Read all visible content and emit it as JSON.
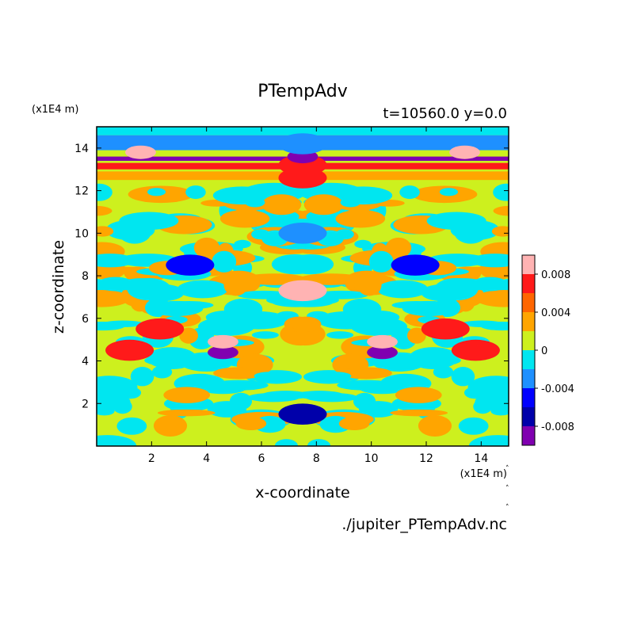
{
  "chart_data": {
    "type": "heatmap",
    "title": "PTempAdv",
    "subtitle": "t=10560.0 y=0.0",
    "xlabel": "x-coordinate",
    "ylabel": "z-coordinate",
    "x_unit": "(x1E4 m)",
    "y_unit": "(x1E4 m)",
    "source": "./jupiter_PTempAdv.nc",
    "xlim": [
      0,
      15
    ],
    "ylim": [
      0,
      15
    ],
    "x_ticks": [
      2,
      4,
      6,
      8,
      10,
      12,
      14
    ],
    "y_ticks": [
      2,
      4,
      6,
      8,
      10,
      12,
      14
    ],
    "colorbar": {
      "tick_labels": [
        "0.008",
        "0.004",
        "0",
        "-0.004",
        "-0.008"
      ],
      "tick_values": [
        0.008,
        0.004,
        0,
        -0.004,
        -0.008
      ],
      "levels": [
        {
          "min": 0.008,
          "max": 0.01,
          "color": "#ffb3b3"
        },
        {
          "min": 0.006,
          "max": 0.008,
          "color": "#ff1a1a"
        },
        {
          "min": 0.004,
          "max": 0.006,
          "color": "#ff6600"
        },
        {
          "min": 0.002,
          "max": 0.004,
          "color": "#ffa500"
        },
        {
          "min": 0.0,
          "max": 0.002,
          "color": "#cdf01e"
        },
        {
          "min": -0.002,
          "max": 0.0,
          "color": "#00e6f0"
        },
        {
          "min": -0.004,
          "max": -0.002,
          "color": "#1e90ff"
        },
        {
          "min": -0.006,
          "max": -0.004,
          "color": "#0000ff"
        },
        {
          "min": -0.008,
          "max": -0.006,
          "color": "#0000aa"
        },
        {
          "min": -0.01,
          "max": -0.008,
          "color": "#8000b0"
        }
      ]
    },
    "features": [
      {
        "x": 1.6,
        "z": 13.8,
        "value": 0.009
      },
      {
        "x": 13.4,
        "z": 13.8,
        "value": 0.009
      },
      {
        "x": 7.5,
        "z": 13.2,
        "value": 0.007
      },
      {
        "x": 7.5,
        "z": 13.6,
        "value": -0.009
      },
      {
        "x": 7.5,
        "z": 14.2,
        "value": -0.004
      },
      {
        "x": 7.5,
        "z": 12.6,
        "value": 0.006
      },
      {
        "x": 4.6,
        "z": 4.4,
        "value": -0.009
      },
      {
        "x": 10.4,
        "z": 4.4,
        "value": -0.009
      },
      {
        "x": 4.6,
        "z": 4.9,
        "value": 0.009
      },
      {
        "x": 10.4,
        "z": 4.9,
        "value": 0.009
      },
      {
        "x": 2.3,
        "z": 5.5,
        "value": 0.007
      },
      {
        "x": 12.7,
        "z": 5.5,
        "value": 0.007
      },
      {
        "x": 7.5,
        "z": 7.3,
        "value": 0.008
      },
      {
        "x": 7.5,
        "z": 10.0,
        "value": -0.004
      },
      {
        "x": 7.5,
        "z": 1.5,
        "value": -0.007
      },
      {
        "x": 3.4,
        "z": 8.5,
        "value": -0.005
      },
      {
        "x": 11.6,
        "z": 8.5,
        "value": -0.005
      },
      {
        "x": 1.2,
        "z": 4.5,
        "value": 0.006
      },
      {
        "x": 13.8,
        "z": 4.5,
        "value": 0.006
      }
    ]
  }
}
